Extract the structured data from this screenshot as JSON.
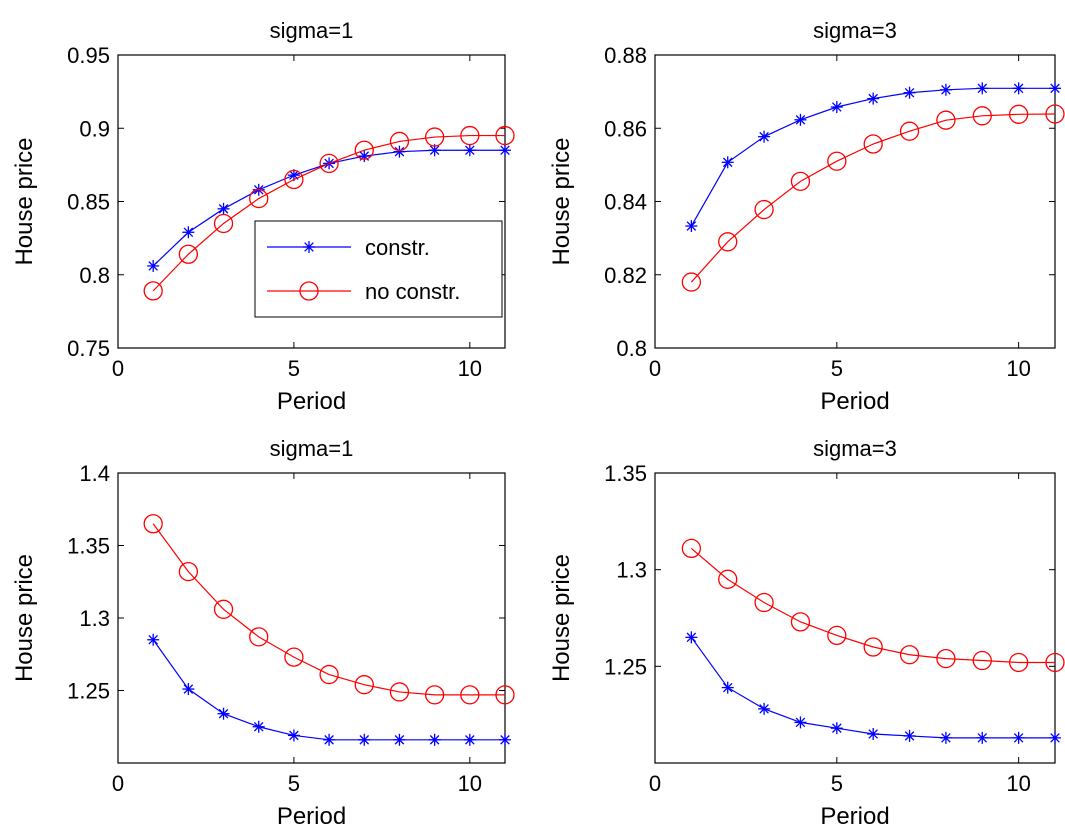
{
  "colors": {
    "constrained": "#0000ff",
    "unconstrained": "#ff0000",
    "axes": "#000000",
    "background": "#ffffff"
  },
  "legend": {
    "placement": "lower-right of top-left panel",
    "entries": [
      {
        "label": "constr.",
        "marker": "asterisk",
        "color": "#0000ff"
      },
      {
        "label": "no constr.",
        "marker": "circle",
        "color": "#ff0000"
      }
    ]
  },
  "chart_data": [
    {
      "type": "line",
      "title": "sigma=1",
      "xlabel": "Period",
      "ylabel": "House price",
      "xlim": [
        0,
        11
      ],
      "ylim": [
        0.75,
        0.95
      ],
      "xticks": [
        0,
        5,
        10
      ],
      "xtick_labels": [
        "0",
        "5",
        "10"
      ],
      "yticks": [
        0.75,
        0.8,
        0.85,
        0.9,
        0.95
      ],
      "ytick_labels": [
        "0.75",
        "0.8",
        "0.85",
        "0.9",
        "0.95"
      ],
      "grid": false,
      "legend": true,
      "x": [
        1,
        2,
        3,
        4,
        5,
        6,
        7,
        8,
        9,
        10,
        11
      ],
      "series": [
        {
          "name": "constr.",
          "marker": "asterisk",
          "color": "#0000ff",
          "values": [
            0.806,
            0.829,
            0.845,
            0.858,
            0.868,
            0.876,
            0.881,
            0.884,
            0.885,
            0.885,
            0.885
          ]
        },
        {
          "name": "no constr.",
          "marker": "circle",
          "color": "#ff0000",
          "values": [
            0.789,
            0.814,
            0.835,
            0.852,
            0.865,
            0.876,
            0.885,
            0.891,
            0.894,
            0.895,
            0.895
          ]
        }
      ]
    },
    {
      "type": "line",
      "title": "sigma=3",
      "xlabel": "Period",
      "ylabel": "House price",
      "xlim": [
        0,
        11
      ],
      "ylim": [
        0.8,
        0.88
      ],
      "xticks": [
        0,
        5,
        10
      ],
      "xtick_labels": [
        "0",
        "5",
        "10"
      ],
      "yticks": [
        0.8,
        0.82,
        0.84,
        0.86,
        0.88
      ],
      "ytick_labels": [
        "0.8",
        "0.82",
        "0.84",
        "0.86",
        "0.88"
      ],
      "grid": false,
      "legend": false,
      "x": [
        1,
        2,
        3,
        4,
        5,
        6,
        7,
        8,
        9,
        10,
        11
      ],
      "series": [
        {
          "name": "constr.",
          "marker": "asterisk",
          "color": "#0000ff",
          "values": [
            0.8333,
            0.8507,
            0.8577,
            0.8623,
            0.8658,
            0.8681,
            0.8697,
            0.8705,
            0.8709,
            0.8709,
            0.8709
          ]
        },
        {
          "name": "no constr.",
          "marker": "circle",
          "color": "#ff0000",
          "values": [
            0.818,
            0.829,
            0.8378,
            0.8455,
            0.851,
            0.8557,
            0.8592,
            0.8622,
            0.8634,
            0.8638,
            0.8639
          ]
        }
      ]
    },
    {
      "type": "line",
      "title": "sigma=1",
      "xlabel": "Period",
      "ylabel": "House price",
      "xlim": [
        0,
        11
      ],
      "ylim": [
        1.2,
        1.4
      ],
      "xticks": [
        0,
        5,
        10
      ],
      "xtick_labels": [
        "0",
        "5",
        "10"
      ],
      "yticks": [
        1.25,
        1.3,
        1.35,
        1.4
      ],
      "ytick_labels": [
        "1.25",
        "1.3",
        "1.35",
        "1.4"
      ],
      "grid": false,
      "legend": false,
      "x": [
        1,
        2,
        3,
        4,
        5,
        6,
        7,
        8,
        9,
        10,
        11
      ],
      "series": [
        {
          "name": "constr.",
          "marker": "asterisk",
          "color": "#0000ff",
          "values": [
            1.285,
            1.251,
            1.234,
            1.225,
            1.219,
            1.216,
            1.216,
            1.216,
            1.216,
            1.216,
            1.216
          ]
        },
        {
          "name": "no constr.",
          "marker": "circle",
          "color": "#ff0000",
          "values": [
            1.365,
            1.332,
            1.306,
            1.287,
            1.273,
            1.261,
            1.254,
            1.249,
            1.247,
            1.247,
            1.247
          ]
        }
      ]
    },
    {
      "type": "line",
      "title": "sigma=3",
      "xlabel": "Period",
      "ylabel": "House price",
      "xlim": [
        0,
        11
      ],
      "ylim": [
        1.2,
        1.35
      ],
      "xticks": [
        0,
        5,
        10
      ],
      "xtick_labels": [
        "0",
        "5",
        "10"
      ],
      "yticks": [
        1.25,
        1.3,
        1.35
      ],
      "ytick_labels": [
        "1.25",
        "1.3",
        "1.35"
      ],
      "grid": false,
      "legend": false,
      "x": [
        1,
        2,
        3,
        4,
        5,
        6,
        7,
        8,
        9,
        10,
        11
      ],
      "series": [
        {
          "name": "constr.",
          "marker": "asterisk",
          "color": "#0000ff",
          "values": [
            1.265,
            1.239,
            1.228,
            1.221,
            1.218,
            1.215,
            1.214,
            1.213,
            1.213,
            1.213,
            1.213
          ]
        },
        {
          "name": "no constr.",
          "marker": "circle",
          "color": "#ff0000",
          "values": [
            1.311,
            1.295,
            1.283,
            1.273,
            1.266,
            1.26,
            1.256,
            1.254,
            1.253,
            1.252,
            1.252
          ]
        }
      ]
    }
  ]
}
